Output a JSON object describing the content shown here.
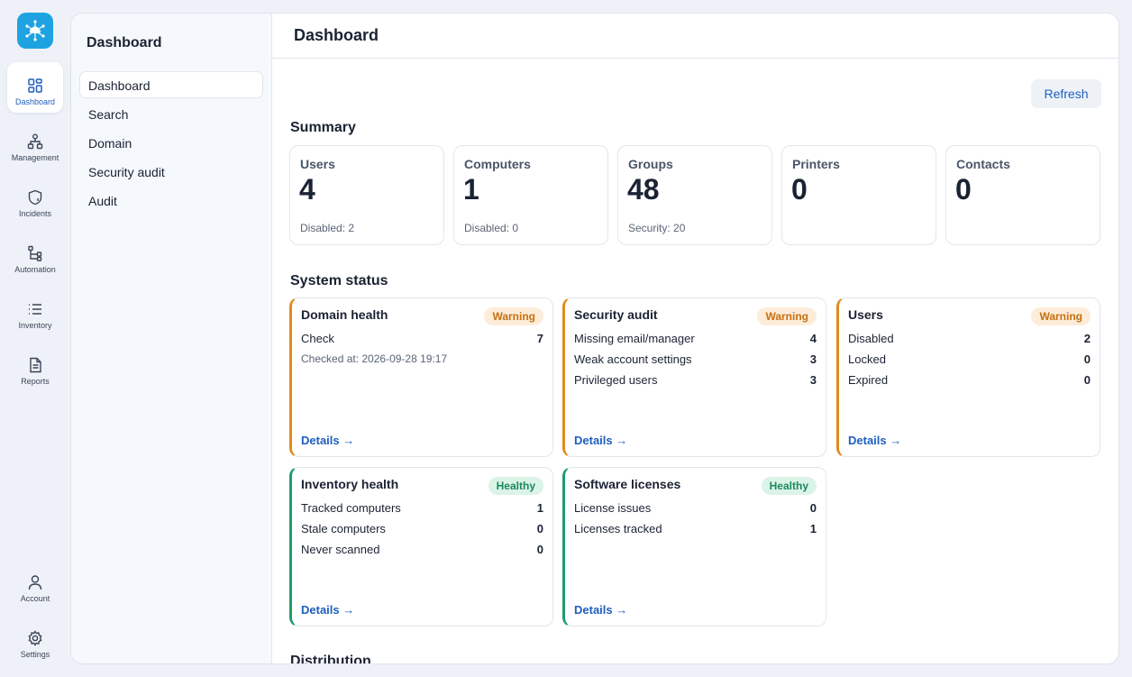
{
  "rail": {
    "items": [
      {
        "label": "Dashboard",
        "icon": "dashboard-icon"
      },
      {
        "label": "Management",
        "icon": "hierarchy-icon"
      },
      {
        "label": "Incidents",
        "icon": "shield-alert-icon"
      },
      {
        "label": "Automation",
        "icon": "workflow-icon"
      },
      {
        "label": "Inventory",
        "icon": "list-icon"
      },
      {
        "label": "Reports",
        "icon": "document-icon"
      }
    ],
    "bottom": [
      {
        "label": "Account",
        "icon": "user-icon"
      },
      {
        "label": "Settings",
        "icon": "gear-icon"
      }
    ]
  },
  "subnav": {
    "title": "Dashboard",
    "items": [
      "Dashboard",
      "Search",
      "Domain",
      "Security audit",
      "Audit"
    ]
  },
  "header": {
    "title": "Dashboard"
  },
  "toolbar": {
    "refresh_label": "Refresh"
  },
  "summary": {
    "title": "Summary",
    "cards": [
      {
        "label": "Users",
        "value": "4",
        "sub": "Disabled: 2"
      },
      {
        "label": "Computers",
        "value": "1",
        "sub": "Disabled: 0"
      },
      {
        "label": "Groups",
        "value": "48",
        "sub": "Security: 20"
      },
      {
        "label": "Printers",
        "value": "0",
        "sub": ""
      },
      {
        "label": "Contacts",
        "value": "0",
        "sub": ""
      }
    ]
  },
  "status": {
    "title": "System status",
    "details_label": "Details →",
    "cards": [
      {
        "title": "Domain health",
        "badge": "Warning",
        "rows": [
          {
            "k": "Check",
            "v": "7"
          }
        ],
        "meta": "Checked at: 2026-09-28 19:17"
      },
      {
        "title": "Security audit",
        "badge": "Warning",
        "rows": [
          {
            "k": "Missing email/manager",
            "v": "4"
          },
          {
            "k": "Weak account settings",
            "v": "3"
          },
          {
            "k": "Privileged users",
            "v": "3"
          }
        ]
      },
      {
        "title": "Users",
        "badge": "Warning",
        "rows": [
          {
            "k": "Disabled",
            "v": "2"
          },
          {
            "k": "Locked",
            "v": "0"
          },
          {
            "k": "Expired",
            "v": "0"
          }
        ]
      },
      {
        "title": "Inventory health",
        "badge": "Healthy",
        "rows": [
          {
            "k": "Tracked computers",
            "v": "1"
          },
          {
            "k": "Stale computers",
            "v": "0"
          },
          {
            "k": "Never scanned",
            "v": "0"
          }
        ]
      },
      {
        "title": "Software licenses",
        "badge": "Healthy",
        "rows": [
          {
            "k": "License issues",
            "v": "0"
          },
          {
            "k": "Licenses tracked",
            "v": "1"
          }
        ]
      }
    ]
  },
  "distribution": {
    "title": "Distribution"
  },
  "colors": {
    "accent": "#1f5fbf",
    "logo": "#1ea2e2",
    "warning": "#e28a1e",
    "healthy": "#1e9c6c"
  }
}
